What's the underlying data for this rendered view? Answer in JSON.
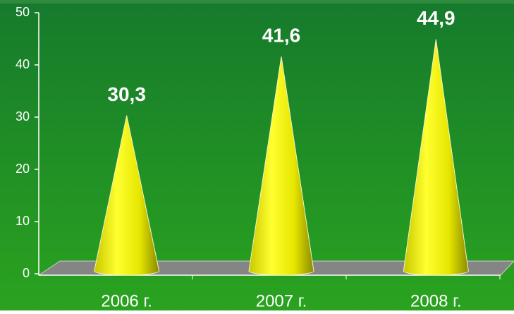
{
  "chart_data": {
    "type": "cone",
    "categories": [
      "2006 г.",
      "2007 г.",
      "2008 г."
    ],
    "values": [
      30.3,
      41.6,
      44.9
    ],
    "value_labels": [
      "30,3",
      "41,6",
      "44,9"
    ],
    "color": "#ffff00",
    "ylim": [
      0,
      50
    ],
    "yticks": [
      0,
      10,
      20,
      30,
      40,
      50
    ],
    "grid": false
  }
}
